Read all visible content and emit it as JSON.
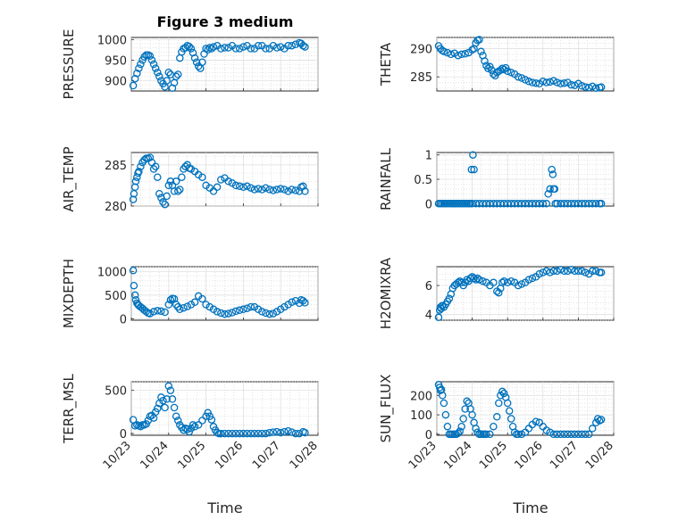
{
  "title": "Figure 3 medium",
  "colors": {
    "marker": "#0072bd",
    "axis": "#262626"
  },
  "chart_data": [
    {
      "type": "scatter",
      "ylabel": "PRESSURE",
      "xlabel": "",
      "xlim": [
        0,
        5
      ],
      "ylim": [
        875,
        1005
      ],
      "yticks": [
        900,
        950,
        1000
      ],
      "x": [
        0.05,
        0.1,
        0.15,
        0.2,
        0.25,
        0.3,
        0.35,
        0.4,
        0.45,
        0.5,
        0.55,
        0.6,
        0.65,
        0.7,
        0.75,
        0.8,
        0.85,
        0.9,
        0.95,
        1.0,
        1.05,
        1.1,
        1.15,
        1.2,
        1.25,
        1.3,
        1.35,
        1.4,
        1.45,
        1.5,
        1.55,
        1.6,
        1.65,
        1.7,
        1.75,
        1.8,
        1.85,
        1.9,
        1.95,
        2.0,
        2.05,
        2.1,
        2.15,
        2.2,
        2.3,
        2.4,
        2.5,
        2.6,
        2.7,
        2.8,
        2.9,
        3.0,
        3.1,
        3.2,
        3.3,
        3.4,
        3.5,
        3.6,
        3.7,
        3.8,
        3.9,
        4.0,
        4.1,
        4.2,
        4.3,
        4.4,
        4.5,
        4.55,
        4.6,
        4.65
      ],
      "y": [
        888,
        905,
        918,
        930,
        940,
        950,
        958,
        962,
        962,
        960,
        950,
        940,
        930,
        920,
        910,
        900,
        893,
        885,
        900,
        920,
        915,
        882,
        895,
        910,
        915,
        955,
        970,
        978,
        980,
        985,
        983,
        978,
        968,
        955,
        945,
        935,
        930,
        945,
        965,
        978,
        975,
        980,
        978,
        982,
        985,
        978,
        980,
        980,
        985,
        978,
        978,
        982,
        985,
        978,
        978,
        985,
        985,
        978,
        978,
        985,
        980,
        982,
        978,
        985,
        985,
        988,
        992,
        990,
        985,
        982
      ]
    },
    {
      "type": "scatter",
      "ylabel": "THETA",
      "xlabel": "",
      "xlim": [
        0,
        5
      ],
      "ylim": [
        282.5,
        292
      ],
      "yticks": [
        285,
        290
      ],
      "x": [
        0.05,
        0.1,
        0.15,
        0.2,
        0.3,
        0.4,
        0.5,
        0.6,
        0.7,
        0.8,
        0.9,
        1.0,
        1.05,
        1.1,
        1.15,
        1.2,
        1.25,
        1.3,
        1.35,
        1.4,
        1.45,
        1.5,
        1.55,
        1.6,
        1.65,
        1.7,
        1.75,
        1.8,
        1.85,
        1.9,
        1.95,
        2.0,
        2.1,
        2.2,
        2.3,
        2.4,
        2.5,
        2.6,
        2.7,
        2.8,
        2.9,
        3.0,
        3.1,
        3.2,
        3.3,
        3.4,
        3.5,
        3.6,
        3.7,
        3.8,
        3.9,
        4.0,
        4.1,
        4.2,
        4.3,
        4.4,
        4.5,
        4.6,
        4.65
      ],
      "y": [
        290.5,
        290,
        289.7,
        289.5,
        289.3,
        289,
        289.2,
        288.8,
        289,
        289.1,
        289.3,
        289.8,
        290,
        291,
        291.5,
        291.6,
        289.5,
        288.8,
        287.8,
        287,
        286.5,
        286.8,
        286.2,
        285.5,
        285.2,
        285.8,
        286,
        286.2,
        286.5,
        286.3,
        286.6,
        286,
        285.8,
        285.5,
        285,
        284.8,
        284.5,
        284.2,
        284,
        283.9,
        283.8,
        284.2,
        284,
        284.1,
        284.3,
        284,
        283.8,
        283.9,
        284,
        283.6,
        283.5,
        283.8,
        283.4,
        283.2,
        283.1,
        283.3,
        283,
        283.1,
        283.2
      ]
    },
    {
      "type": "scatter",
      "ylabel": "AIR_TEMP",
      "xlabel": "",
      "xlim": [
        0,
        5
      ],
      "ylim": [
        280,
        286.5
      ],
      "yticks": [
        280,
        285
      ],
      "x": [
        0.05,
        0.07,
        0.1,
        0.12,
        0.15,
        0.18,
        0.2,
        0.25,
        0.3,
        0.35,
        0.4,
        0.45,
        0.5,
        0.55,
        0.6,
        0.65,
        0.7,
        0.75,
        0.8,
        0.85,
        0.9,
        0.95,
        1.0,
        1.05,
        1.1,
        1.15,
        1.2,
        1.25,
        1.3,
        1.35,
        1.4,
        1.45,
        1.5,
        1.55,
        1.6,
        1.7,
        1.8,
        1.9,
        2.0,
        2.1,
        2.2,
        2.3,
        2.4,
        2.5,
        2.6,
        2.7,
        2.8,
        2.9,
        3.0,
        3.1,
        3.2,
        3.3,
        3.4,
        3.5,
        3.6,
        3.7,
        3.8,
        3.9,
        4.0,
        4.1,
        4.2,
        4.3,
        4.4,
        4.5,
        4.55,
        4.6,
        4.65
      ],
      "y": [
        280.8,
        281.5,
        282.3,
        283,
        283.5,
        284,
        284.2,
        284.8,
        285.3,
        285.6,
        285.8,
        285.8,
        285.9,
        285.3,
        284.5,
        284.8,
        283.5,
        281.5,
        281,
        280.5,
        280.2,
        281.2,
        282.5,
        283,
        282.5,
        281.8,
        283,
        281.8,
        282,
        283.5,
        284.5,
        284.8,
        285,
        284.6,
        284.5,
        284.2,
        283.8,
        283.5,
        282.5,
        282.2,
        281.8,
        282.3,
        283.2,
        283.4,
        283,
        282.8,
        282.5,
        282.4,
        282.3,
        282.4,
        282.2,
        282,
        282.1,
        282,
        282.2,
        282,
        281.9,
        282,
        282.1,
        282,
        281.8,
        282,
        281.9,
        281.8,
        282.3,
        282.4,
        281.8
      ]
    },
    {
      "type": "scatter",
      "ylabel": "RAINFALL",
      "xlabel": "",
      "xlim": [
        0,
        5
      ],
      "ylim": [
        -0.05,
        1.05
      ],
      "yticks": [
        0,
        0.5,
        1
      ],
      "x": [
        0.05,
        0.1,
        0.15,
        0.2,
        0.25,
        0.3,
        0.35,
        0.4,
        0.45,
        0.5,
        0.55,
        0.6,
        0.65,
        0.7,
        0.75,
        0.8,
        0.85,
        0.9,
        0.95,
        1.0,
        0.98,
        1.02,
        1.05,
        1.1,
        1.2,
        1.3,
        1.4,
        1.5,
        1.6,
        1.7,
        1.8,
        1.9,
        2.0,
        2.1,
        2.2,
        2.3,
        2.4,
        2.5,
        2.6,
        2.7,
        2.8,
        2.9,
        3.0,
        3.1,
        3.15,
        3.2,
        3.25,
        3.28,
        3.3,
        3.33,
        3.35,
        3.4,
        3.5,
        3.6,
        3.7,
        3.8,
        3.9,
        4.0,
        4.1,
        4.2,
        4.3,
        4.4,
        4.5,
        4.6,
        4.65
      ],
      "y": [
        0,
        0,
        0,
        0,
        0,
        0,
        0,
        0,
        0,
        0,
        0,
        0,
        0,
        0,
        0,
        0,
        0,
        0,
        0,
        0,
        0.7,
        1.0,
        0.7,
        0,
        0,
        0,
        0,
        0,
        0,
        0,
        0,
        0,
        0,
        0,
        0,
        0,
        0,
        0,
        0,
        0,
        0,
        0,
        0,
        0,
        0.2,
        0.3,
        0.7,
        0.6,
        0.3,
        0.3,
        0,
        0,
        0,
        0,
        0,
        0,
        0,
        0,
        0,
        0,
        0,
        0,
        0,
        0,
        0
      ]
    },
    {
      "type": "scatter",
      "ylabel": "MIXDEPTH",
      "xlabel": "",
      "xlim": [
        0,
        5
      ],
      "ylim": [
        -30,
        1100
      ],
      "yticks": [
        0,
        500,
        1000
      ],
      "x": [
        0.05,
        0.07,
        0.1,
        0.12,
        0.15,
        0.18,
        0.2,
        0.25,
        0.3,
        0.35,
        0.4,
        0.45,
        0.5,
        0.6,
        0.7,
        0.8,
        0.9,
        1.0,
        1.05,
        1.1,
        1.15,
        1.2,
        1.25,
        1.3,
        1.4,
        1.5,
        1.6,
        1.7,
        1.8,
        1.9,
        2.0,
        2.1,
        2.2,
        2.3,
        2.4,
        2.5,
        2.6,
        2.7,
        2.8,
        2.9,
        3.0,
        3.1,
        3.2,
        3.3,
        3.4,
        3.5,
        3.6,
        3.7,
        3.8,
        3.9,
        4.0,
        4.1,
        4.2,
        4.3,
        4.4,
        4.5,
        4.55,
        4.6,
        4.65
      ],
      "y": [
        1020,
        700,
        500,
        400,
        330,
        300,
        280,
        250,
        220,
        180,
        150,
        120,
        110,
        150,
        170,
        160,
        140,
        300,
        400,
        430,
        420,
        300,
        250,
        200,
        230,
        260,
        300,
        350,
        480,
        420,
        300,
        250,
        200,
        150,
        120,
        100,
        110,
        130,
        160,
        180,
        200,
        220,
        250,
        250,
        200,
        150,
        120,
        100,
        110,
        150,
        200,
        250,
        300,
        350,
        380,
        330,
        400,
        380,
        340
      ]
    },
    {
      "type": "scatter",
      "ylabel": "H2OMIXRA",
      "xlabel": "",
      "xlim": [
        0,
        5
      ],
      "ylim": [
        3.6,
        7.3
      ],
      "yticks": [
        4,
        6
      ],
      "x": [
        0.05,
        0.08,
        0.1,
        0.12,
        0.15,
        0.2,
        0.25,
        0.3,
        0.35,
        0.4,
        0.45,
        0.5,
        0.55,
        0.6,
        0.65,
        0.7,
        0.75,
        0.8,
        0.85,
        0.9,
        0.95,
        1.0,
        1.05,
        1.1,
        1.15,
        1.2,
        1.3,
        1.4,
        1.5,
        1.6,
        1.7,
        1.75,
        1.8,
        1.85,
        1.9,
        2.0,
        2.1,
        2.2,
        2.3,
        2.4,
        2.5,
        2.6,
        2.7,
        2.8,
        2.9,
        3.0,
        3.1,
        3.2,
        3.3,
        3.4,
        3.5,
        3.6,
        3.7,
        3.8,
        3.9,
        4.0,
        4.1,
        4.2,
        4.3,
        4.4,
        4.5,
        4.6,
        4.65
      ],
      "y": [
        3.8,
        4.3,
        4.5,
        4.4,
        4.6,
        4.5,
        4.7,
        4.9,
        5.1,
        5.4,
        5.8,
        6.0,
        6.1,
        6.2,
        6.3,
        6.2,
        6.0,
        6.2,
        6.4,
        6.3,
        6.5,
        6.6,
        6.5,
        6.4,
        6.5,
        6.4,
        6.3,
        6.2,
        6.0,
        6.2,
        5.6,
        5.5,
        5.8,
        6.2,
        6.3,
        6.2,
        6.3,
        6.2,
        6.0,
        6.1,
        6.2,
        6.4,
        6.5,
        6.6,
        6.8,
        6.9,
        7.0,
        6.9,
        7.0,
        7.0,
        7.1,
        7.0,
        7.0,
        7.1,
        7.0,
        7.0,
        7.0,
        6.9,
        6.8,
        7.0,
        7.0,
        6.9,
        6.9
      ]
    },
    {
      "type": "scatter",
      "ylabel": "TERR_MSL",
      "xlabel": "Time",
      "xlim": [
        0,
        5
      ],
      "ylim": [
        -20,
        600
      ],
      "yticks": [
        0,
        500
      ],
      "xticks": [
        "10/23",
        "10/24",
        "10/25",
        "10/26",
        "10/27",
        "10/28"
      ],
      "x": [
        0.05,
        0.1,
        0.15,
        0.2,
        0.25,
        0.3,
        0.35,
        0.4,
        0.45,
        0.5,
        0.55,
        0.6,
        0.65,
        0.7,
        0.75,
        0.8,
        0.85,
        0.9,
        0.95,
        1.0,
        1.05,
        1.1,
        1.15,
        1.2,
        1.25,
        1.3,
        1.35,
        1.4,
        1.45,
        1.5,
        1.55,
        1.6,
        1.65,
        1.7,
        1.8,
        1.9,
        2.0,
        2.05,
        2.1,
        2.15,
        2.2,
        2.25,
        2.3,
        2.35,
        2.4,
        2.5,
        2.6,
        2.7,
        2.8,
        2.9,
        3.0,
        3.1,
        3.2,
        3.3,
        3.4,
        3.5,
        3.6,
        3.7,
        3.8,
        3.9,
        4.0,
        4.1,
        4.2,
        4.3,
        4.4,
        4.5,
        4.6,
        4.65
      ],
      "y": [
        160,
        90,
        100,
        90,
        80,
        100,
        100,
        110,
        150,
        200,
        210,
        180,
        250,
        290,
        350,
        420,
        380,
        300,
        400,
        550,
        500,
        400,
        300,
        200,
        150,
        100,
        70,
        40,
        60,
        50,
        20,
        60,
        100,
        80,
        100,
        150,
        200,
        240,
        200,
        160,
        80,
        40,
        10,
        0,
        0,
        0,
        0,
        0,
        0,
        0,
        0,
        0,
        0,
        0,
        0,
        0,
        0,
        10,
        15,
        20,
        10,
        20,
        30,
        15,
        0,
        0,
        20,
        10
      ]
    },
    {
      "type": "scatter",
      "ylabel": "SUN_FLUX",
      "xlabel": "Time",
      "xlim": [
        0,
        5
      ],
      "ylim": [
        -5,
        270
      ],
      "yticks": [
        0,
        100,
        200
      ],
      "xticks": [
        "10/23",
        "10/24",
        "10/25",
        "10/26",
        "10/27",
        "10/28"
      ],
      "x": [
        0.05,
        0.08,
        0.1,
        0.13,
        0.16,
        0.2,
        0.25,
        0.3,
        0.35,
        0.4,
        0.45,
        0.5,
        0.55,
        0.6,
        0.65,
        0.7,
        0.75,
        0.8,
        0.85,
        0.9,
        0.95,
        1.0,
        1.05,
        1.1,
        1.15,
        1.2,
        1.25,
        1.3,
        1.35,
        1.4,
        1.5,
        1.6,
        1.7,
        1.75,
        1.8,
        1.85,
        1.9,
        1.95,
        2.0,
        2.05,
        2.1,
        2.15,
        2.2,
        2.25,
        2.3,
        2.4,
        2.5,
        2.6,
        2.7,
        2.8,
        2.9,
        3.0,
        3.1,
        3.2,
        3.3,
        3.4,
        3.5,
        3.6,
        3.7,
        3.8,
        3.9,
        4.0,
        4.1,
        4.2,
        4.3,
        4.4,
        4.5,
        4.55,
        4.6,
        4.65
      ],
      "y": [
        255,
        240,
        225,
        230,
        200,
        160,
        100,
        40,
        0,
        0,
        0,
        0,
        0,
        5,
        15,
        40,
        80,
        130,
        170,
        160,
        130,
        100,
        60,
        30,
        10,
        0,
        0,
        0,
        0,
        0,
        0,
        40,
        90,
        160,
        200,
        220,
        210,
        190,
        160,
        120,
        80,
        40,
        10,
        0,
        0,
        0,
        10,
        30,
        50,
        65,
        60,
        40,
        20,
        10,
        0,
        0,
        0,
        0,
        0,
        0,
        0,
        0,
        0,
        0,
        0,
        30,
        60,
        80,
        70,
        75
      ]
    }
  ]
}
